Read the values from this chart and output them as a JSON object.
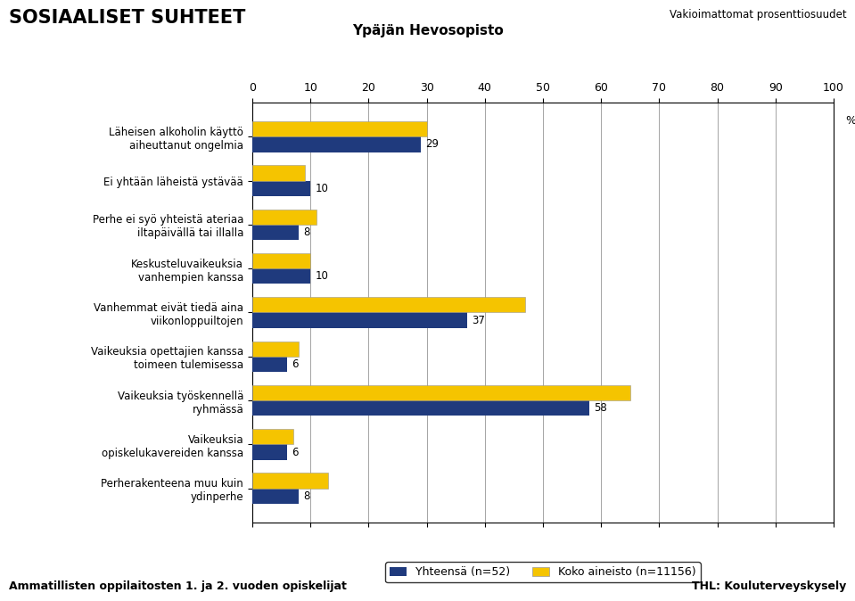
{
  "title_main": "SOSIAALISET SUHTEET",
  "title_sub": "Ypäjän Hevosopisto",
  "title_right": "Vakioimattomat prosenttiosuudet",
  "categories": [
    "Perherakenteena muu kuin\nydinperhe",
    "Vaikeuksia\nopiskelukavereiden kanssa",
    "Vaikeuksia työskennellä\nryhmässä",
    "Vaikeuksia opettajien kanssa\ntoimeen tulemisessa",
    "Vanhemmat eivät tiedä aina\nviikonloppuiltojen",
    "Keskusteluvaikeuksia\nvanhempien kanssa",
    "Perhe ei syö yhteistä ateriaa\niltapäivällä tai illalla",
    "Ei yhtään läheistä ystävää",
    "Läheisen alkoholin käyttö\naiheuttanut ongelmia"
  ],
  "blue_values": [
    29,
    10,
    8,
    10,
    37,
    6,
    58,
    6,
    8
  ],
  "yellow_values": [
    30,
    9,
    11,
    10,
    47,
    8,
    65,
    7,
    13
  ],
  "blue_color": "#1F3A7D",
  "yellow_color": "#F5C400",
  "xlim": [
    0,
    100
  ],
  "xticks": [
    0,
    10,
    20,
    30,
    40,
    50,
    60,
    70,
    80,
    90,
    100
  ],
  "legend_blue": "Yhteensä (n=52)",
  "legend_yellow": "Koko aineisto (n=11156)",
  "footer_left": "Ammatillisten oppilaitosten 1. ja 2. vuoden opiskelijat",
  "footer_right": "THL: Kouluterveyskysely",
  "bar_height": 0.35,
  "background_color": "#FFFFFF"
}
